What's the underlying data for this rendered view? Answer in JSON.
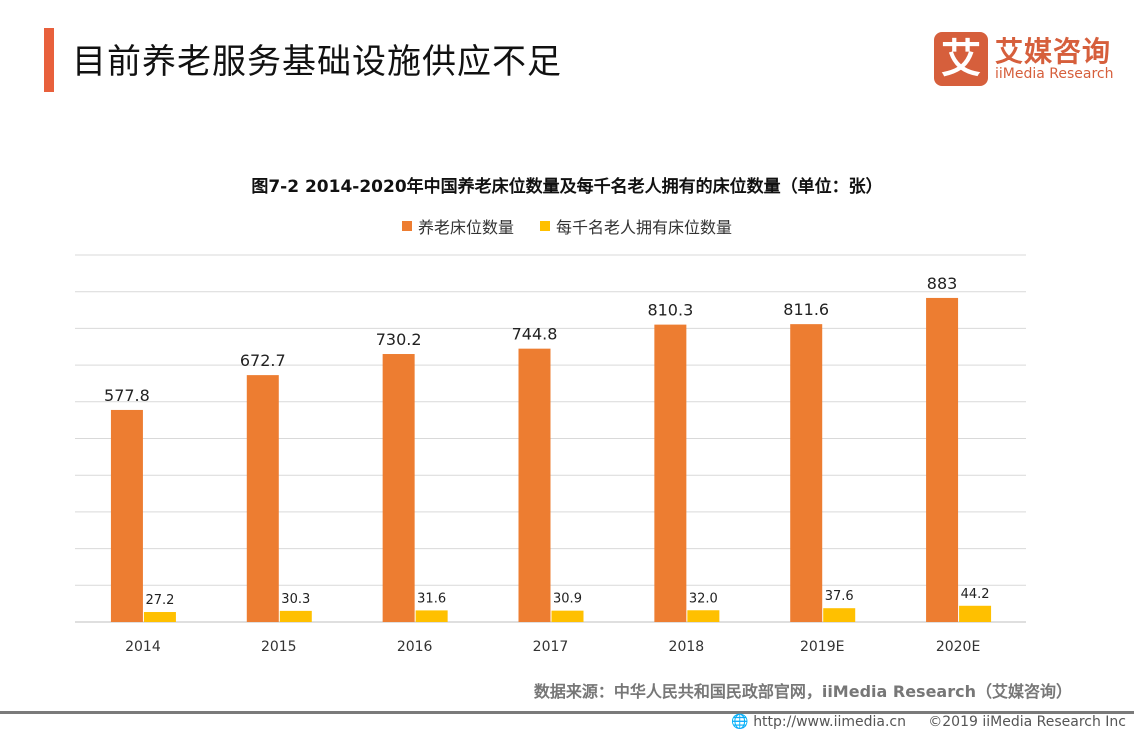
{
  "header": {
    "title": "目前养老服务基础设施供应不足"
  },
  "logo": {
    "mark": "艾",
    "cn": "艾媒咨询",
    "en": "iiMedia Research"
  },
  "chart_data": {
    "type": "bar",
    "title": "图7-2 2014-2020年中国养老床位数量及每千名老人拥有的床位数量（单位：张）",
    "categories": [
      "2014",
      "2015",
      "2016",
      "2017",
      "2018",
      "2019E",
      "2020E"
    ],
    "series": [
      {
        "name": "养老床位数量",
        "color": "#ED7D31",
        "values": [
          577.8,
          672.7,
          730.2,
          744.8,
          810.3,
          811.6,
          883
        ],
        "labels": [
          "577.8",
          "672.7",
          "730.2",
          "744.8",
          "810.3",
          "811.6",
          "883"
        ]
      },
      {
        "name": "每千名老人拥有床位数量",
        "color": "#FFC000",
        "values": [
          27.2,
          30.3,
          31.6,
          30.9,
          32.0,
          37.6,
          44.2
        ],
        "labels": [
          "27.2",
          "30.3",
          "31.6",
          "30.9",
          "32.0",
          "37.6",
          "44.2"
        ]
      }
    ],
    "ylim": [
      0,
      1000
    ],
    "grid": true,
    "legend": "top"
  },
  "source": "数据来源：中华人民共和国民政部官网，iiMedia Research（艾媒咨询）",
  "footer": {
    "url": "http://www.iimedia.cn",
    "copyright": "©2019  iiMedia Research Inc"
  }
}
